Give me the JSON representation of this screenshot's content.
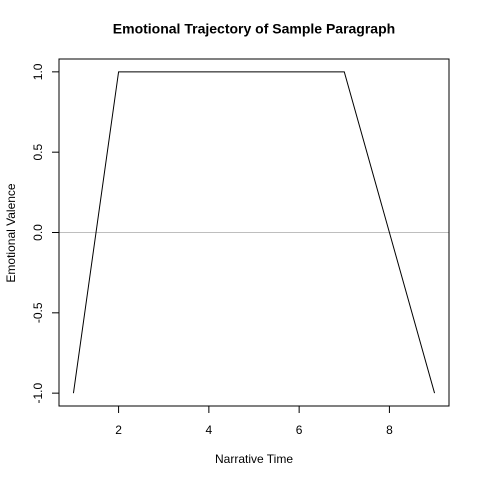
{
  "chart_data": {
    "type": "line",
    "title": "Emotional Trajectory of Sample Paragraph",
    "x_label": "Narrative Time",
    "y_label": "Emotional Valence",
    "x": [
      1,
      2,
      3,
      4,
      5,
      6,
      7,
      8,
      9
    ],
    "values": [
      -1,
      1,
      1,
      1,
      1,
      1,
      1,
      0,
      -1
    ],
    "color": "#000000",
    "xlim": [
      0.68,
      9.32
    ],
    "ylim": [
      -1.08,
      1.08
    ],
    "xticks": [
      2,
      4,
      6,
      8
    ],
    "yticks": [
      {
        "value": -1,
        "label": "-1.0"
      },
      {
        "value": -0.5,
        "label": "-0.5"
      },
      {
        "value": 0,
        "label": "0.0"
      },
      {
        "value": 0.5,
        "label": "0.5"
      },
      {
        "value": 1,
        "label": "1.0"
      }
    ],
    "hline": {
      "value": 0,
      "color": "#bebebe"
    }
  }
}
